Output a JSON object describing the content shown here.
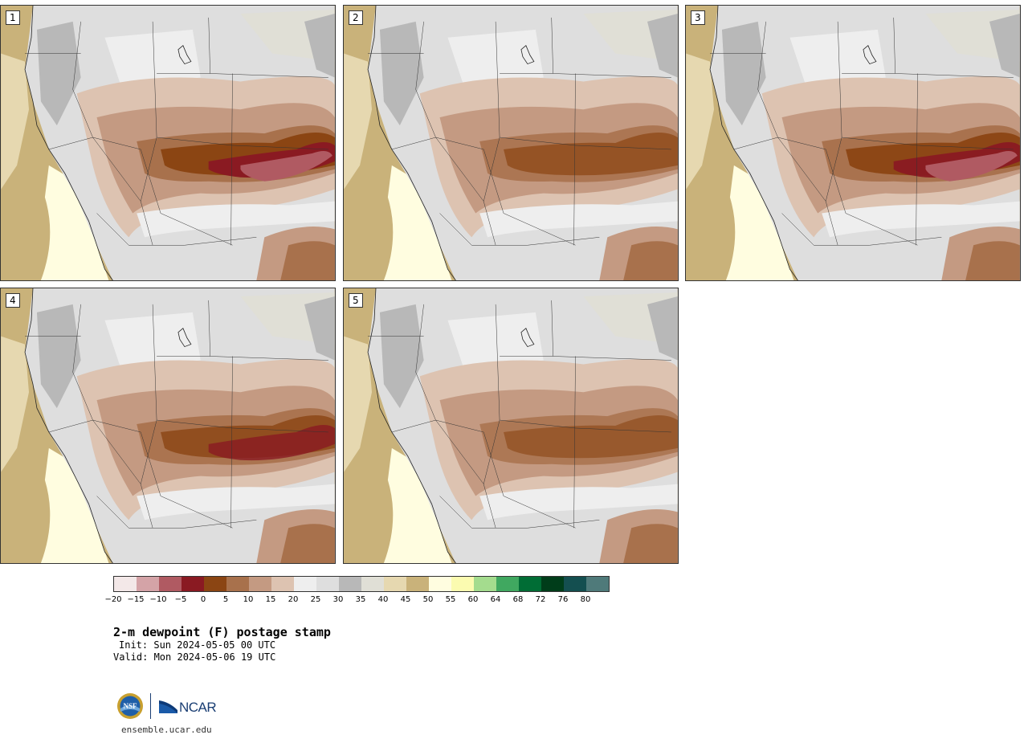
{
  "panels": [
    {
      "label": "1",
      "intensity": 1.0
    },
    {
      "label": "2",
      "intensity": 0.7
    },
    {
      "label": "3",
      "intensity": 0.95
    },
    {
      "label": "4",
      "intensity": 0.8
    },
    {
      "label": "5",
      "intensity": 0.6
    }
  ],
  "colorbar": {
    "colors": [
      "#f3e8e8",
      "#d4a3a7",
      "#b05a62",
      "#8a1a22",
      "#8b4513",
      "#a8714c",
      "#c49a82",
      "#ddc3b1",
      "#eeeeee",
      "#dedede",
      "#b8b8b8",
      "#e0dfd6",
      "#e6d8b0",
      "#c9b27a",
      "#fffde0",
      "#fbfbb0",
      "#a4dc8e",
      "#40a860",
      "#006d35",
      "#003d1a",
      "#144f50",
      "#4f7a7a"
    ],
    "ticks": [
      "−20",
      "−15",
      "−10",
      "−5",
      "0",
      "5",
      "10",
      "15",
      "20",
      "25",
      "30",
      "35",
      "40",
      "45",
      "50",
      "55",
      "60",
      "64",
      "68",
      "72",
      "76",
      "80"
    ]
  },
  "title": "2-m dewpoint (F) postage stamp",
  "init": "Init: Sun 2024-05-05 00 UTC",
  "valid": "Valid: Mon 2024-05-06 19 UTC",
  "logo": {
    "ncar": "NCAR",
    "nsf": "NSF"
  },
  "url": "ensemble.ucar.edu"
}
